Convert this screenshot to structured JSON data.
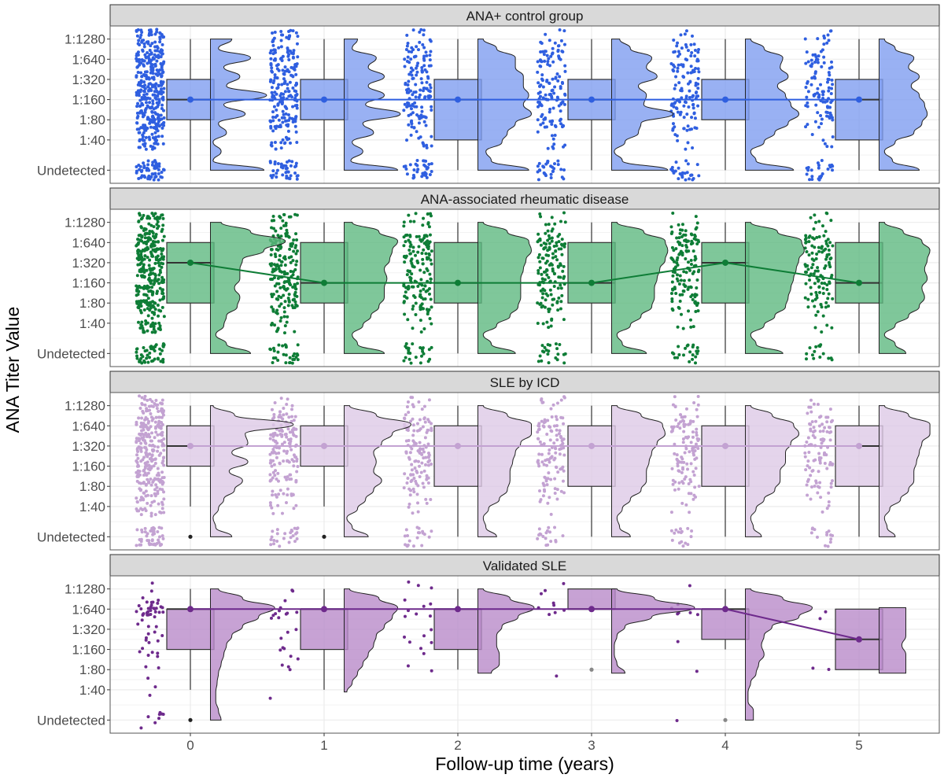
{
  "chart_data": {
    "type": "raincloud",
    "title": "",
    "xlabel": "Follow-up time (years)",
    "ylabel": "ANA Titer Value",
    "x_ticks": [
      "0",
      "1",
      "2",
      "3",
      "4",
      "5"
    ],
    "y_levels": [
      "Undetected",
      "1:40",
      "1:80",
      "1:160",
      "1:320",
      "1:640",
      "1:1280"
    ],
    "y_level_positions": [
      -0.5,
      1,
      2,
      3,
      4,
      5,
      6
    ],
    "y_range": [
      -1.15,
      6.65
    ],
    "x_range": [
      -0.6,
      5.6
    ],
    "grid": true,
    "legend": "none",
    "panels": [
      {
        "name": "ANA+ control group",
        "color": "#2f5fe0",
        "fill": "#7f9df0",
        "median_line": [
          3,
          3,
          3,
          3,
          3,
          3
        ],
        "boxes": [
          {
            "x": 0,
            "q1": 2,
            "median": 3,
            "q3": 4,
            "lo": -0.5,
            "hi": 6,
            "mean": 3,
            "outliers": []
          },
          {
            "x": 1,
            "q1": 2,
            "median": 3,
            "q3": 4,
            "lo": -0.5,
            "hi": 6,
            "mean": 3,
            "outliers": []
          },
          {
            "x": 2,
            "q1": 1,
            "median": 3,
            "q3": 4,
            "lo": -0.5,
            "hi": 6,
            "mean": 3,
            "outliers": []
          },
          {
            "x": 3,
            "q1": 2,
            "median": 3,
            "q3": 4,
            "lo": -0.5,
            "hi": 6,
            "mean": 3,
            "outliers": []
          },
          {
            "x": 4,
            "q1": 2,
            "median": 3,
            "q3": 4,
            "lo": -0.5,
            "hi": 6,
            "mean": 3,
            "outliers": []
          },
          {
            "x": 5,
            "q1": 1,
            "median": 3,
            "q3": 4,
            "lo": -0.5,
            "hi": 6,
            "mean": 3,
            "outliers": []
          }
        ],
        "densities": [
          [
            0.4,
            0.02,
            0.08,
            0.02,
            0.12,
            0.06,
            0.26,
            0.1,
            0.42,
            0.12,
            0.22,
            0.1,
            0.3,
            0.06,
            0.16
          ],
          [
            0.4,
            0.05,
            0.14,
            0.06,
            0.22,
            0.14,
            0.42,
            0.16,
            0.3,
            0.18,
            0.3,
            0.18,
            0.24,
            0.06,
            0.1
          ],
          [
            0.38,
            0.1,
            0.06,
            0.18,
            0.22,
            0.28,
            0.4,
            0.34,
            0.38,
            0.34,
            0.34,
            0.28,
            0.28,
            0.14,
            0.04
          ],
          [
            0.42,
            0.08,
            0.02,
            0.1,
            0.2,
            0.22,
            0.46,
            0.24,
            0.26,
            0.2,
            0.34,
            0.26,
            0.3,
            0.14,
            0.06
          ],
          [
            0.36,
            0.08,
            0.04,
            0.14,
            0.22,
            0.32,
            0.4,
            0.34,
            0.3,
            0.24,
            0.32,
            0.26,
            0.28,
            0.14,
            0.04
          ],
          [
            0.3,
            0.1,
            0.04,
            0.12,
            0.26,
            0.32,
            0.36,
            0.34,
            0.3,
            0.24,
            0.3,
            0.22,
            0.26,
            0.12,
            0.04
          ]
        ],
        "counts": [
          [
            60,
            40,
            70,
            70,
            70,
            70,
            45
          ],
          [
            40,
            20,
            40,
            45,
            40,
            45,
            25
          ],
          [
            35,
            12,
            25,
            40,
            30,
            30,
            15
          ],
          [
            30,
            10,
            25,
            35,
            25,
            30,
            12
          ],
          [
            28,
            8,
            22,
            35,
            25,
            28,
            12
          ],
          [
            25,
            6,
            18,
            30,
            20,
            25,
            10
          ]
        ]
      },
      {
        "name": "ANA-associated rheumatic disease",
        "color": "#0e7d36",
        "fill": "#5fb981",
        "median_line": [
          4,
          3,
          3,
          3,
          4,
          3
        ],
        "boxes": [
          {
            "x": 0,
            "q1": 2,
            "median": 4,
            "q3": 5,
            "lo": -0.5,
            "hi": 6,
            "mean": 4,
            "outliers": []
          },
          {
            "x": 1,
            "q1": 2,
            "median": 3,
            "q3": 5,
            "lo": -0.5,
            "hi": 6,
            "mean": 3,
            "outliers": []
          },
          {
            "x": 2,
            "q1": 2,
            "median": 3,
            "q3": 5,
            "lo": -0.5,
            "hi": 6,
            "mean": 3,
            "outliers": []
          },
          {
            "x": 3,
            "q1": 2,
            "median": 3,
            "q3": 5,
            "lo": -0.5,
            "hi": 6,
            "mean": 3,
            "outliers": []
          },
          {
            "x": 4,
            "q1": 2,
            "median": 4,
            "q3": 5,
            "lo": -0.5,
            "hi": 6,
            "mean": 4,
            "outliers": []
          },
          {
            "x": 5,
            "q1": 2,
            "median": 3,
            "q3": 5,
            "lo": -0.5,
            "hi": 6,
            "mean": 3,
            "outliers": []
          }
        ],
        "densities": [
          [
            0.3,
            0.12,
            0.04,
            0.1,
            0.12,
            0.2,
            0.22,
            0.18,
            0.22,
            0.22,
            0.24,
            0.4,
            0.56,
            0.3,
            0.08
          ],
          [
            0.3,
            0.1,
            0.06,
            0.14,
            0.2,
            0.26,
            0.3,
            0.3,
            0.32,
            0.3,
            0.34,
            0.36,
            0.4,
            0.26,
            0.06
          ],
          [
            0.28,
            0.1,
            0.04,
            0.14,
            0.24,
            0.3,
            0.32,
            0.32,
            0.32,
            0.34,
            0.36,
            0.4,
            0.38,
            0.22,
            0.04
          ],
          [
            0.26,
            0.08,
            0.04,
            0.14,
            0.22,
            0.3,
            0.32,
            0.32,
            0.34,
            0.36,
            0.4,
            0.42,
            0.4,
            0.24,
            0.04
          ],
          [
            0.28,
            0.08,
            0.04,
            0.14,
            0.22,
            0.3,
            0.32,
            0.34,
            0.36,
            0.38,
            0.4,
            0.44,
            0.42,
            0.24,
            0.04
          ],
          [
            0.2,
            0.12,
            0.04,
            0.12,
            0.22,
            0.3,
            0.34,
            0.32,
            0.36,
            0.34,
            0.36,
            0.38,
            0.32,
            0.18,
            0.04
          ]
        ],
        "counts": [
          [
            50,
            35,
            55,
            60,
            65,
            70,
            40
          ],
          [
            30,
            15,
            35,
            40,
            40,
            45,
            20
          ],
          [
            25,
            10,
            30,
            35,
            35,
            40,
            15
          ],
          [
            22,
            8,
            25,
            30,
            32,
            38,
            12
          ],
          [
            22,
            6,
            25,
            28,
            35,
            38,
            12
          ],
          [
            15,
            6,
            20,
            26,
            28,
            32,
            10
          ]
        ]
      },
      {
        "name": "SLE by ICD",
        "color": "#c3a2d2",
        "fill": "#ddc9e6",
        "median_line": [
          4,
          4,
          4,
          4,
          4,
          4
        ],
        "boxes": [
          {
            "x": 0,
            "q1": 3,
            "median": 4,
            "q3": 5,
            "lo": 1,
            "hi": 6,
            "mean": 4,
            "outliers": [
              -0.5
            ]
          },
          {
            "x": 1,
            "q1": 3,
            "median": 4,
            "q3": 5,
            "lo": 1,
            "hi": 6,
            "mean": 4,
            "outliers": [
              -0.5
            ]
          },
          {
            "x": 2,
            "q1": 2,
            "median": 4,
            "q3": 5,
            "lo": -0.5,
            "hi": 6,
            "mean": 4,
            "outliers": []
          },
          {
            "x": 3,
            "q1": 2,
            "median": 4,
            "q3": 5,
            "lo": -0.5,
            "hi": 6,
            "mean": 4,
            "outliers": []
          },
          {
            "x": 4,
            "q1": 2,
            "median": 4,
            "q3": 5,
            "lo": -0.5,
            "hi": 6,
            "mean": 4,
            "outliers": []
          },
          {
            "x": 5,
            "q1": 2,
            "median": 4,
            "q3": 5,
            "lo": -0.5,
            "hi": 6,
            "mean": 4,
            "outliers": []
          }
        ],
        "densities": [
          [
            0.16,
            0.04,
            0.02,
            0.06,
            0.1,
            0.18,
            0.24,
            0.14,
            0.28,
            0.16,
            0.28,
            0.26,
            0.62,
            0.18,
            0.02
          ],
          [
            0.18,
            0.06,
            0.02,
            0.1,
            0.16,
            0.22,
            0.28,
            0.22,
            0.24,
            0.22,
            0.28,
            0.36,
            0.5,
            0.24,
            0.04
          ],
          [
            0.14,
            0.06,
            0.04,
            0.08,
            0.16,
            0.22,
            0.24,
            0.24,
            0.26,
            0.28,
            0.32,
            0.4,
            0.4,
            0.22,
            0.04
          ],
          [
            0.14,
            0.06,
            0.04,
            0.08,
            0.14,
            0.22,
            0.26,
            0.26,
            0.28,
            0.3,
            0.34,
            0.4,
            0.38,
            0.22,
            0.04
          ],
          [
            0.12,
            0.06,
            0.04,
            0.08,
            0.14,
            0.22,
            0.26,
            0.26,
            0.3,
            0.3,
            0.34,
            0.4,
            0.36,
            0.2,
            0.04
          ],
          [
            0.12,
            0.06,
            0.04,
            0.08,
            0.16,
            0.22,
            0.26,
            0.26,
            0.28,
            0.3,
            0.32,
            0.38,
            0.38,
            0.22,
            0.04
          ]
        ],
        "counts": [
          [
            45,
            30,
            50,
            55,
            60,
            65,
            40
          ],
          [
            25,
            10,
            25,
            30,
            35,
            40,
            14
          ],
          [
            20,
            8,
            22,
            28,
            30,
            32,
            12
          ],
          [
            18,
            6,
            20,
            25,
            28,
            30,
            10
          ],
          [
            16,
            6,
            18,
            24,
            26,
            30,
            10
          ],
          [
            14,
            6,
            16,
            22,
            24,
            28,
            8
          ]
        ]
      },
      {
        "name": "Validated SLE",
        "color": "#6e2a8c",
        "fill": "#b98bc9",
        "median_line": [
          5,
          5,
          5,
          5,
          5,
          3.5
        ],
        "boxes": [
          {
            "x": 0,
            "q1": 3,
            "median": 5,
            "q3": 5,
            "lo": 1,
            "hi": 6,
            "mean": 5,
            "outliers": [
              -0.5
            ]
          },
          {
            "x": 1,
            "q1": 3,
            "median": 5,
            "q3": 5,
            "lo": 1,
            "hi": 6,
            "mean": 5,
            "outliers": []
          },
          {
            "x": 2,
            "q1": 3,
            "median": 5,
            "q3": 5,
            "lo": 2,
            "hi": 6,
            "mean": 5,
            "outliers": []
          },
          {
            "x": 3,
            "q1": 5,
            "median": 5,
            "q3": 6,
            "lo": 5,
            "hi": 6,
            "mean": 5,
            "outliers": [
              2
            ]
          },
          {
            "x": 4,
            "q1": 3.5,
            "median": 5,
            "q3": 5,
            "lo": 3,
            "hi": 6,
            "mean": 5,
            "outliers": [
              -0.5
            ]
          },
          {
            "x": 5,
            "q1": 2,
            "median": 3.5,
            "q3": 5,
            "lo": 2,
            "hi": 5,
            "mean": 3.5,
            "outliers": []
          }
        ],
        "densities": [
          [
            0.08,
            0.06,
            0.04,
            0.04,
            0.05,
            0.06,
            0.08,
            0.1,
            0.12,
            0.16,
            0.24,
            0.36,
            0.48,
            0.24,
            0.06
          ],
          [
            null,
            null,
            null,
            0.02,
            0.06,
            0.1,
            0.14,
            0.18,
            0.22,
            0.24,
            0.3,
            0.36,
            0.4,
            0.26,
            0.04
          ],
          [
            null,
            null,
            null,
            null,
            null,
            0.1,
            0.16,
            0.16,
            0.14,
            0.14,
            0.18,
            0.3,
            0.42,
            0.24,
            0.04
          ],
          [
            null,
            null,
            null,
            null,
            null,
            0.1,
            0.04,
            0.02,
            0.02,
            0.04,
            0.1,
            0.3,
            0.62,
            0.32,
            0.04
          ],
          [
            0.06,
            0.06,
            0.02,
            0.02,
            0.04,
            0.08,
            0.1,
            0.14,
            0.12,
            0.14,
            0.2,
            0.4,
            0.5,
            0.28,
            0.04
          ],
          [
            null,
            null,
            null,
            null,
            null,
            0.2,
            0.2,
            0.2,
            0.17,
            0.2,
            0.2,
            0.2,
            0.2,
            null,
            null
          ]
        ],
        "counts": [
          [
            8,
            2,
            3,
            9,
            8,
            30,
            3
          ],
          [
            0,
            1,
            3,
            5,
            3,
            10,
            2
          ],
          [
            0,
            0,
            2,
            4,
            3,
            7,
            3
          ],
          [
            0,
            0,
            1,
            0,
            0,
            6,
            3
          ],
          [
            1,
            0,
            1,
            1,
            0,
            6,
            1
          ],
          [
            0,
            0,
            2,
            0,
            0,
            2,
            0
          ]
        ]
      }
    ]
  }
}
